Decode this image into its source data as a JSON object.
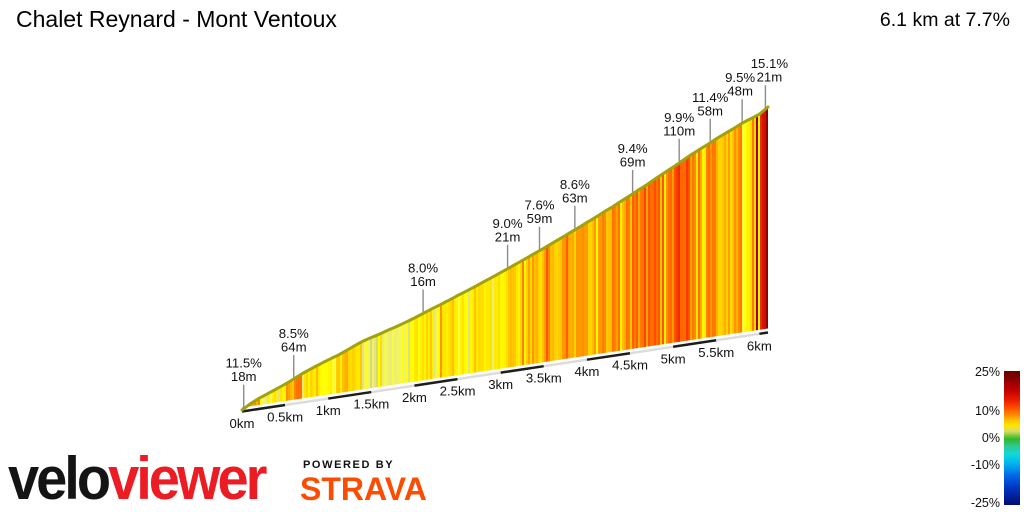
{
  "header": {
    "title": "Chalet Reynard - Mont Ventoux",
    "summary": "6.1 km at 7.7%"
  },
  "chart_data": {
    "type": "area",
    "title": "Chalet Reynard - Mont Ventoux",
    "subtitle": "6.1 km at 7.7%",
    "total_distance_km": 6.1,
    "avg_gradient_pct": 7.7,
    "x_ticks": [
      {
        "km": 0,
        "label": "0km"
      },
      {
        "km": 0.5,
        "label": "0.5km"
      },
      {
        "km": 1,
        "label": "1km"
      },
      {
        "km": 1.5,
        "label": "1.5km"
      },
      {
        "km": 2,
        "label": "2km"
      },
      {
        "km": 2.5,
        "label": "2.5km"
      },
      {
        "km": 3,
        "label": "3km"
      },
      {
        "km": 3.5,
        "label": "3.5km"
      },
      {
        "km": 4,
        "label": "4km"
      },
      {
        "km": 4.5,
        "label": "4.5km"
      },
      {
        "km": 5,
        "label": "5km"
      },
      {
        "km": 5.5,
        "label": "5.5km"
      },
      {
        "km": 6,
        "label": "6km"
      }
    ],
    "annotations": [
      {
        "gradient": "11.5%",
        "gain": "18m",
        "km": 0.02,
        "dx": 0
      },
      {
        "gradient": "8.5%",
        "gain": "64m",
        "km": 0.6,
        "dx": 0
      },
      {
        "gradient": "8.0%",
        "gain": "16m",
        "km": 2.1,
        "dx": 0
      },
      {
        "gradient": "9.0%",
        "gain": "21m",
        "km": 3.08,
        "dx": 0
      },
      {
        "gradient": "7.6%",
        "gain": "59m",
        "km": 3.45,
        "dx": 0
      },
      {
        "gradient": "8.6%",
        "gain": "63m",
        "km": 3.86,
        "dx": 0
      },
      {
        "gradient": "9.4%",
        "gain": "69m",
        "km": 4.53,
        "dx": 0
      },
      {
        "gradient": "9.9%",
        "gain": "110m",
        "km": 5.07,
        "dx": 0
      },
      {
        "gradient": "11.4%",
        "gain": "58m",
        "km": 5.43,
        "dx": 0
      },
      {
        "gradient": "9.5%",
        "gain": "48m",
        "km": 5.8,
        "dx": -2
      },
      {
        "gradient": "15.1%",
        "gain": "21m",
        "km": 6.07,
        "dx": 4
      }
    ],
    "gradient_per_100m_pct": [
      12.8,
      10.2,
      8.2,
      8.6,
      8.3,
      9.9,
      10.3,
      8.6,
      8.1,
      7.6,
      7.1,
      8.7,
      9.3,
      8.5,
      6.2,
      5.8,
      6.5,
      6.0,
      6.8,
      7.4,
      7.9,
      8.3,
      7.3,
      7.8,
      8.5,
      7.6,
      8.0,
      8.7,
      8.2,
      8.8,
      8.4,
      9.1,
      8.6,
      9.3,
      8.8,
      9.7,
      9.2,
      9.9,
      9.4,
      10.1,
      9.6,
      10.5,
      9.8,
      10.7,
      10.2,
      11.1,
      10.4,
      11.7,
      11.0,
      10.6,
      11.9,
      11.3,
      10.5,
      9.9,
      10.9,
      9.7,
      9.3,
      10.3,
      7.8,
      8.0,
      14.8
    ],
    "gradient_spikes": [
      {
        "km": 5.975,
        "width_km": 0.04,
        "pct": 17.0
      },
      {
        "km": 6.085,
        "width_km": 0.015,
        "pct": 19.0
      }
    ],
    "legend": {
      "ticks": [
        "25%",
        "10%",
        "0%",
        "-10%",
        "-25%"
      ],
      "tick_values": [
        25,
        10,
        0,
        -10,
        -25
      ],
      "range_pct": [
        -25,
        25
      ],
      "position": "right"
    }
  },
  "footer": {
    "brand_black": "velo",
    "brand_red": "viewer",
    "powered_by": "POWERED BY",
    "strava": "STRAVA"
  },
  "colors": {
    "brand_red": "#ec1c24",
    "strava_orange": "#fc4c02",
    "profile_edge_olive": "#a2a20a",
    "leader_gray": "#8c8c8c",
    "text": "#111111"
  }
}
